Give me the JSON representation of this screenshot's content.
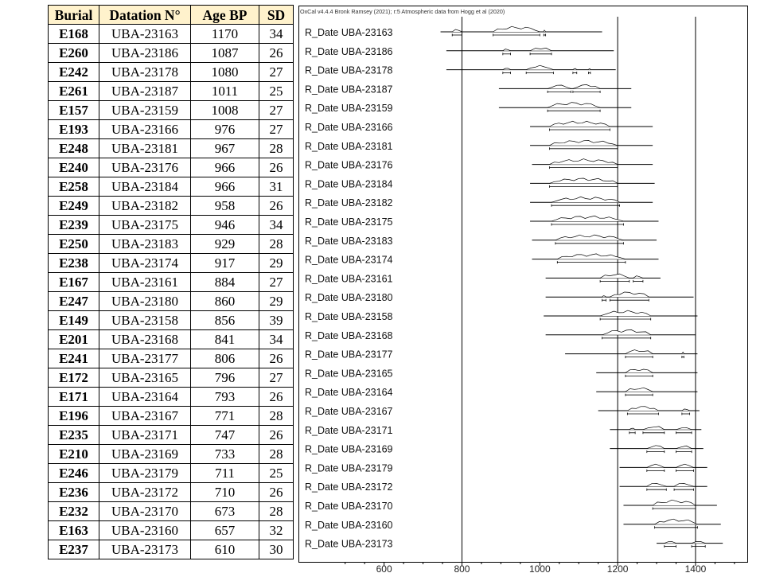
{
  "table": {
    "headers": [
      "Burial",
      "Datation N°",
      "Age BP",
      "SD"
    ],
    "rows": [
      [
        "E168",
        "UBA-23163",
        "1170",
        "34"
      ],
      [
        "E260",
        "UBA-23186",
        "1087",
        "26"
      ],
      [
        "E242",
        "UBA-23178",
        "1080",
        "27"
      ],
      [
        "E261",
        "UBA-23187",
        "1011",
        "25"
      ],
      [
        "E157",
        "UBA-23159",
        "1008",
        "27"
      ],
      [
        "E193",
        "UBA-23166",
        "976",
        "27"
      ],
      [
        "E248",
        "UBA-23181",
        "967",
        "28"
      ],
      [
        "E240",
        "UBA-23176",
        "966",
        "26"
      ],
      [
        "E258",
        "UBA-23184",
        "966",
        "31"
      ],
      [
        "E249",
        "UBA-23182",
        "958",
        "26"
      ],
      [
        "E239",
        "UBA-23175",
        "946",
        "34"
      ],
      [
        "E250",
        "UBA-23183",
        "929",
        "28"
      ],
      [
        "E238",
        "UBA-23174",
        "917",
        "29"
      ],
      [
        "E167",
        "UBA-23161",
        "884",
        "27"
      ],
      [
        "E247",
        "UBA-23180",
        "860",
        "29"
      ],
      [
        "E149",
        "UBA-23158",
        "856",
        "39"
      ],
      [
        "E201",
        "UBA-23168",
        "841",
        "34"
      ],
      [
        "E241",
        "UBA-23177",
        "806",
        "26"
      ],
      [
        "E172",
        "UBA-23165",
        "796",
        "27"
      ],
      [
        "E171",
        "UBA-23164",
        "793",
        "26"
      ],
      [
        "E196",
        "UBA-23167",
        "771",
        "28"
      ],
      [
        "E235",
        "UBA-23171",
        "747",
        "26"
      ],
      [
        "E210",
        "UBA-23169",
        "733",
        "28"
      ],
      [
        "E246",
        "UBA-23179",
        "711",
        "25"
      ],
      [
        "E236",
        "UBA-23172",
        "710",
        "26"
      ],
      [
        "E232",
        "UBA-23170",
        "673",
        "28"
      ],
      [
        "E163",
        "UBA-23160",
        "657",
        "32"
      ],
      [
        "E237",
        "UBA-23173",
        "610",
        "30"
      ]
    ]
  },
  "chart_data": {
    "type": "range",
    "title": "OxCal v4.4.4 Bronk Ramsey (2021); r:5 Atmospheric data from Hogg et al (2020)",
    "x_ticks": [
      600,
      800,
      1000,
      1200,
      1400
    ],
    "xlim": [
      380,
      1535
    ],
    "gridlines_at": [
      800,
      1200,
      1400
    ],
    "series": [
      {
        "label": "R_Date UBA-23163",
        "range": [
          745,
          1160
        ],
        "peaks": [
          [
            775,
            800
          ],
          [
            880,
            1000
          ],
          [
            1010,
            1015
          ]
        ]
      },
      {
        "label": "R_Date UBA-23186",
        "range": [
          760,
          1190
        ],
        "peaks": [
          [
            905,
            925
          ],
          [
            975,
            1030
          ]
        ]
      },
      {
        "label": "R_Date UBA-23178",
        "range": [
          760,
          1195
        ],
        "peaks": [
          [
            905,
            925
          ],
          [
            965,
            1035
          ],
          [
            1085,
            1095
          ],
          [
            1125,
            1130
          ]
        ]
      },
      {
        "label": "R_Date UBA-23187",
        "range": [
          895,
          1235
        ],
        "peaks": [
          [
            1020,
            1080
          ],
          [
            1085,
            1155
          ]
        ]
      },
      {
        "label": "R_Date UBA-23159",
        "range": [
          895,
          1235
        ],
        "peaks": [
          [
            1020,
            1155
          ]
        ]
      },
      {
        "label": "R_Date UBA-23166",
        "range": [
          975,
          1290
        ],
        "peaks": [
          [
            1025,
            1180
          ]
        ]
      },
      {
        "label": "R_Date UBA-23181",
        "range": [
          975,
          1290
        ],
        "peaks": [
          [
            1025,
            1200
          ]
        ]
      },
      {
        "label": "R_Date UBA-23176",
        "range": [
          980,
          1290
        ],
        "peaks": [
          [
            1025,
            1200
          ]
        ]
      },
      {
        "label": "R_Date UBA-23184",
        "range": [
          975,
          1295
        ],
        "peaks": [
          [
            1025,
            1200
          ]
        ]
      },
      {
        "label": "R_Date UBA-23182",
        "range": [
          975,
          1290
        ],
        "peaks": [
          [
            1030,
            1205
          ]
        ]
      },
      {
        "label": "R_Date UBA-23175",
        "range": [
          975,
          1305
        ],
        "peaks": [
          [
            1030,
            1215
          ]
        ]
      },
      {
        "label": "R_Date UBA-23183",
        "range": [
          980,
          1300
        ],
        "peaks": [
          [
            1040,
            1215
          ]
        ]
      },
      {
        "label": "R_Date UBA-23174",
        "range": [
          980,
          1305
        ],
        "peaks": [
          [
            1045,
            1220
          ]
        ]
      },
      {
        "label": "R_Date UBA-23161",
        "range": [
          1015,
          1310
        ],
        "peaks": [
          [
            1155,
            1230
          ],
          [
            1240,
            1265
          ]
        ]
      },
      {
        "label": "R_Date UBA-23180",
        "range": [
          1015,
          1395
        ],
        "peaks": [
          [
            1160,
            1170
          ],
          [
            1180,
            1280
          ]
        ]
      },
      {
        "label": "R_Date UBA-23158",
        "range": [
          1010,
          1405
        ],
        "peaks": [
          [
            1155,
            1285
          ]
        ]
      },
      {
        "label": "R_Date UBA-23168",
        "range": [
          1015,
          1400
        ],
        "peaks": [
          [
            1160,
            1285
          ]
        ]
      },
      {
        "label": "R_Date UBA-23177",
        "range": [
          1065,
          1405
        ],
        "peaks": [
          [
            1220,
            1290
          ],
          [
            1365,
            1370
          ]
        ]
      },
      {
        "label": "R_Date UBA-23165",
        "range": [
          1145,
          1405
        ],
        "peaks": [
          [
            1220,
            1290
          ]
        ]
      },
      {
        "label": "R_Date UBA-23164",
        "range": [
          1145,
          1405
        ],
        "peaks": [
          [
            1220,
            1290
          ]
        ]
      },
      {
        "label": "R_Date UBA-23167",
        "range": [
          1150,
          1410
        ],
        "peaks": [
          [
            1225,
            1305
          ],
          [
            1365,
            1385
          ]
        ]
      },
      {
        "label": "R_Date UBA-23171",
        "range": [
          1180,
          1415
        ],
        "peaks": [
          [
            1230,
            1245
          ],
          [
            1265,
            1320
          ],
          [
            1350,
            1390
          ]
        ]
      },
      {
        "label": "R_Date UBA-23169",
        "range": [
          1180,
          1420
        ],
        "peaks": [
          [
            1275,
            1320
          ],
          [
            1350,
            1390
          ]
        ]
      },
      {
        "label": "R_Date UBA-23179",
        "range": [
          1205,
          1430
        ],
        "peaks": [
          [
            1275,
            1320
          ],
          [
            1350,
            1395
          ]
        ]
      },
      {
        "label": "R_Date UBA-23172",
        "range": [
          1205,
          1430
        ],
        "peaks": [
          [
            1275,
            1325
          ],
          [
            1345,
            1395
          ]
        ]
      },
      {
        "label": "R_Date UBA-23170",
        "range": [
          1215,
          1455
        ],
        "peaks": [
          [
            1290,
            1400
          ]
        ]
      },
      {
        "label": "R_Date UBA-23160",
        "range": [
          1215,
          1465
        ],
        "peaks": [
          [
            1295,
            1405
          ]
        ]
      },
      {
        "label": "R_Date UBA-23173",
        "range": [
          1300,
          1470
        ],
        "peaks": [
          [
            1320,
            1350
          ],
          [
            1390,
            1425
          ]
        ]
      }
    ]
  }
}
